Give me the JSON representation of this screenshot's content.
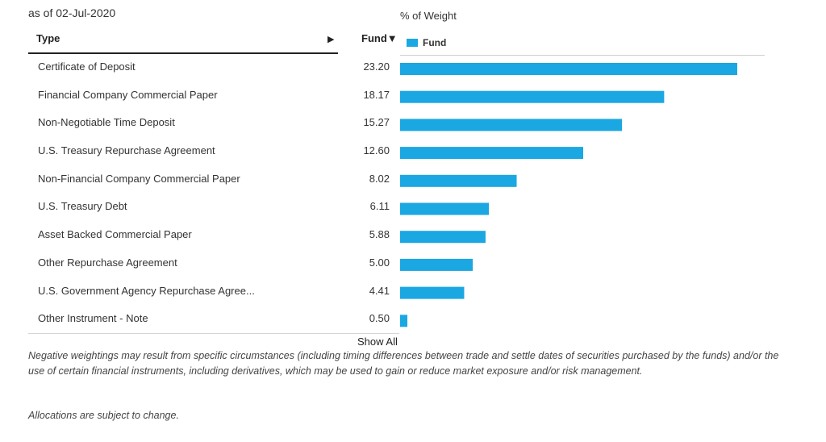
{
  "header": {
    "as_of": "as of 02-Jul-2020",
    "type_label": "Type",
    "sort_arrow": "▶",
    "fund_label": "Fund▼"
  },
  "chart_data": {
    "type": "bar",
    "orientation": "horizontal",
    "title": "% of Weight",
    "legend": "top-left",
    "series": [
      {
        "name": "Fund",
        "color": "#1ba7e1",
        "values": [
          23.2,
          18.17,
          15.27,
          12.6,
          8.02,
          6.11,
          5.88,
          5.0,
          4.41,
          0.5
        ]
      }
    ],
    "categories": [
      "Certificate of Deposit",
      "Financial Company Commercial Paper",
      "Non-Negotiable Time Deposit",
      "U.S. Treasury Repurchase Agreement",
      "Non-Financial Company Commercial Paper",
      "U.S. Treasury Debt",
      "Asset Backed Commercial Paper",
      "Other Repurchase Agreement",
      "U.S. Government Agency Repurchase Agree...",
      "Other Instrument - Note"
    ],
    "value_labels": [
      "23.20",
      "18.17",
      "15.27",
      "12.60",
      "8.02",
      "6.11",
      "5.88",
      "5.00",
      "4.41",
      "0.50"
    ]
  },
  "show_all": "Show All",
  "disclaimer": "Negative weightings may result from specific circumstances (including timing differences between trade and settle dates of securities purchased by the funds) and/or the use of certain financial instruments, including derivatives, which may be used to gain or reduce market exposure and/or risk management.",
  "note": "Allocations are subject to change."
}
